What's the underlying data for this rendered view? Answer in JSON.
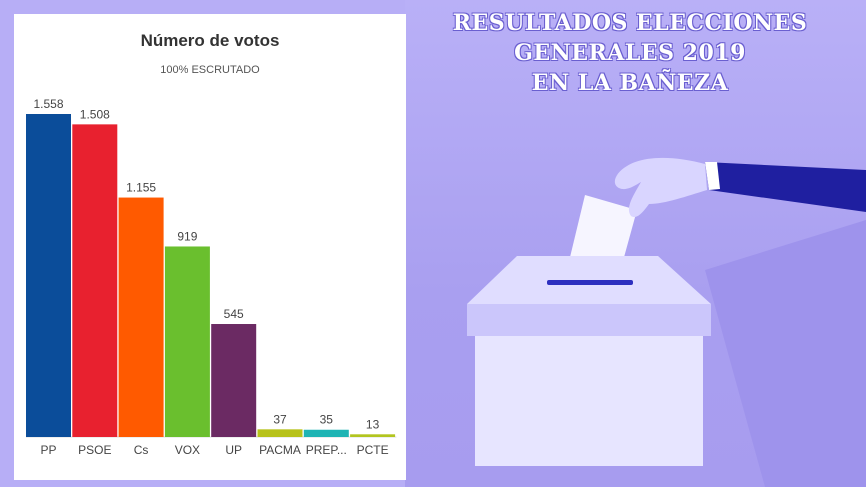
{
  "headline": {
    "line1": "RESULTADOS ELECCIONES",
    "line2": "GENERALES 2019",
    "line3": "EN LA BAÑEZA"
  },
  "colors": {
    "background": "#b7aef6",
    "headline_text": "#ffffff",
    "box": "#dcd8ff",
    "sleeve": "#1f1fa0"
  },
  "illustration": {
    "icon": "ballot-box-with-hand-icon"
  },
  "chart_data": {
    "type": "bar",
    "title": "Número de votos",
    "subtitle": "100% ESCRUTADO",
    "categories": [
      "PP",
      "PSOE",
      "Cs",
      "VOX",
      "UP",
      "PACMA",
      "PREP...",
      "PCTE"
    ],
    "values": [
      1558,
      1508,
      1155,
      919,
      545,
      37,
      35,
      13
    ],
    "value_labels": [
      "1.558",
      "1.508",
      "1.155",
      "919",
      "545",
      "37",
      "35",
      "13"
    ],
    "colors": [
      "#0b4d9a",
      "#e8212f",
      "#ff5a00",
      "#6abf2e",
      "#6b2a63",
      "#b7c21a",
      "#1eb4b4",
      "#b2c51f"
    ],
    "ylim": [
      0,
      1558
    ],
    "grid": false,
    "legend": "none"
  }
}
